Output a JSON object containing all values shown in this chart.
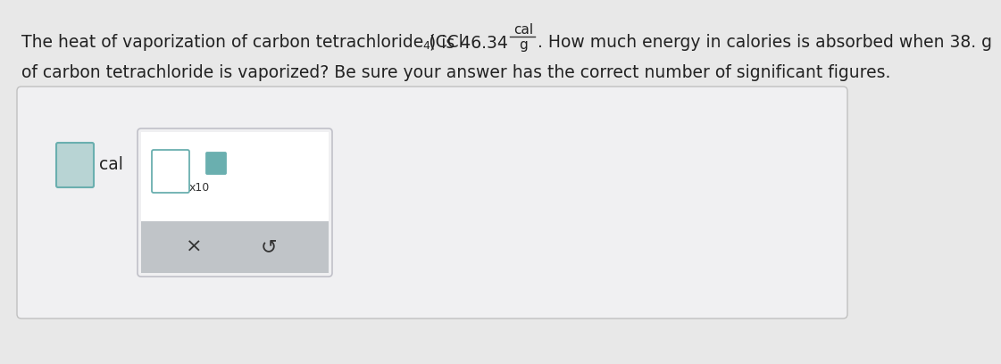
{
  "bg_color": "#d8d8d8",
  "main_bg": "#e8e8e8",
  "panel_bg": "#f0f0f2",
  "panel_border": "#c0c0c0",
  "text_line1a": "The heat of vaporization of carbon tetrachloride (CCl",
  "subscript_4": "4",
  "text_line1b": ") is 46.34",
  "fraction_num": "cal",
  "fraction_den": "g",
  "text_line1c": ". How much energy in calories is absorbed when 38. g",
  "text_line2": "of carbon tetrachloride is vaporized? Be sure your answer has the correct number of significant figures.",
  "answer_label": "cal",
  "input_box_color": "#b8d4d4",
  "input_box_border": "#6aafaf",
  "popup_bg": "#ffffff",
  "popup_border": "#c0c0c8",
  "popup_bottom_bg": "#c0c4c8",
  "inner_box_border": "#6aafaf",
  "inner_box_bg": "#ffffff",
  "sup_box_border": "#6aafaf",
  "sup_box_bg": "#6aafaf",
  "x_symbol": "×",
  "undo_symbol": "↺",
  "x10_label": "x10",
  "font_size_main": 13.5,
  "font_size_small": 9
}
